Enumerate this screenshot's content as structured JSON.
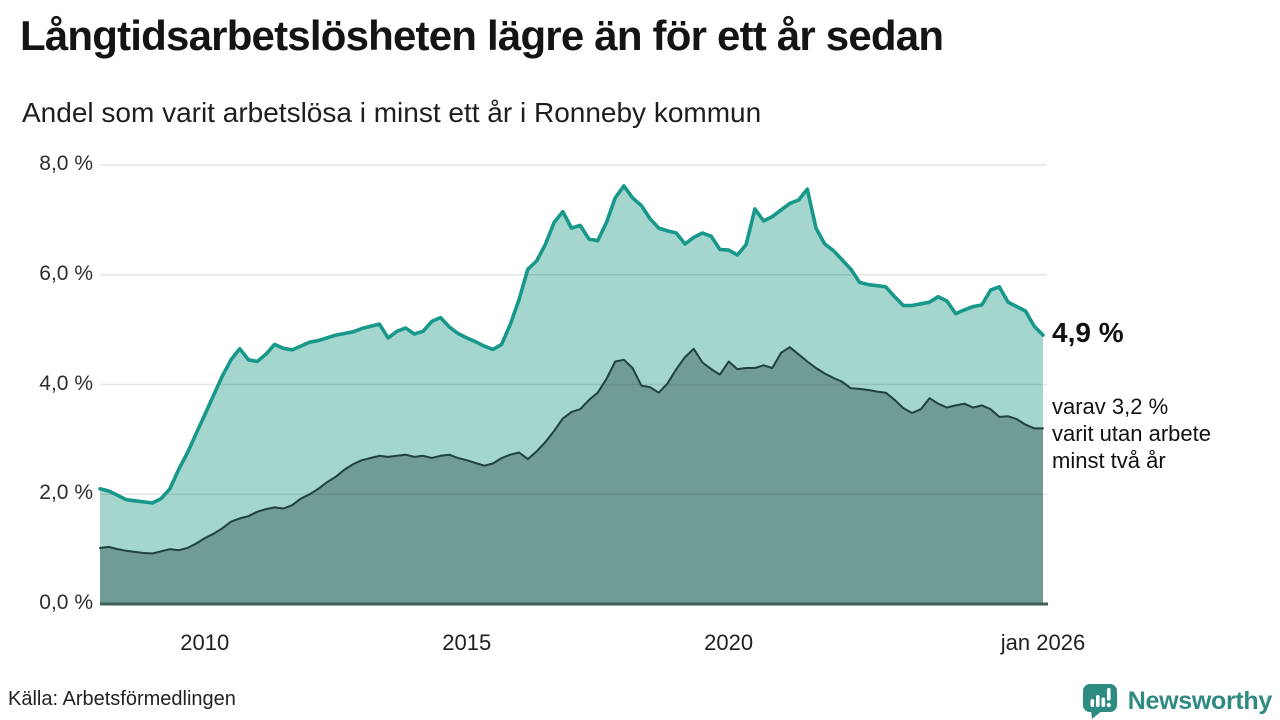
{
  "header": {
    "title": "Långtidsarbetslösheten lägre än för ett år sedan",
    "subtitle": "Andel som varit arbetslösa i minst ett år i Ronneby kommun"
  },
  "chart_data": {
    "type": "area",
    "title": "Långtidsarbetslösheten lägre än för ett år sedan",
    "subtitle": "Andel som varit arbetslösa i minst ett år i Ronneby kommun",
    "x_start": "jan 2008",
    "x_end": "jan 2026",
    "points_interval_months": 2,
    "total_months": 216,
    "x_tick_months": [
      24,
      84,
      144,
      216
    ],
    "x_tick_labels": [
      "2010",
      "2015",
      "2020",
      "jan 2026"
    ],
    "y_ticks": [
      0,
      2,
      4,
      6,
      8
    ],
    "y_tick_labels": [
      "0,0 %",
      "2,0 %",
      "4,0 %",
      "6,0 %",
      "8,0 %"
    ],
    "ylim": [
      0,
      8
    ],
    "grid": "horizontal",
    "colors": {
      "line_1yr": "#17988a",
      "fill_1yr": "#a5d6ce",
      "line_2yr": "#1e423c",
      "fill_2yr": "#6f9d96",
      "baseline": "#415f59",
      "gridline": "rgba(0,0,0,0.10)"
    },
    "series": [
      {
        "name": "Arbetslösa minst ett år",
        "latest_value_pct": 4.9,
        "values": [
          2.1,
          2.06,
          1.98,
          1.9,
          1.88,
          1.86,
          1.84,
          1.92,
          2.1,
          2.45,
          2.75,
          3.1,
          3.45,
          3.8,
          4.15,
          4.45,
          4.65,
          4.45,
          4.42,
          4.55,
          4.73,
          4.66,
          4.63,
          4.7,
          4.77,
          4.8,
          4.85,
          4.9,
          4.93,
          4.96,
          5.02,
          5.06,
          5.1,
          4.85,
          4.97,
          5.03,
          4.92,
          4.97,
          5.15,
          5.22,
          5.05,
          4.93,
          4.85,
          4.78,
          4.7,
          4.64,
          4.73,
          5.1,
          5.55,
          6.1,
          6.25,
          6.55,
          6.95,
          7.15,
          6.85,
          6.9,
          6.65,
          6.62,
          6.95,
          7.4,
          7.62,
          7.4,
          7.26,
          7.02,
          6.85,
          6.8,
          6.76,
          6.56,
          6.68,
          6.76,
          6.7,
          6.46,
          6.45,
          6.36,
          6.55,
          7.2,
          6.98,
          7.06,
          7.18,
          7.3,
          7.36,
          7.56,
          6.85,
          6.56,
          6.44,
          6.27,
          6.1,
          5.86,
          5.82,
          5.8,
          5.78,
          5.6,
          5.44,
          5.44,
          5.47,
          5.5,
          5.6,
          5.52,
          5.29,
          5.36,
          5.42,
          5.45,
          5.72,
          5.78,
          5.5,
          5.42,
          5.34,
          5.06,
          4.9
        ]
      },
      {
        "name": "Arbetslösa minst två år",
        "latest_value_pct": 3.2,
        "values": [
          1.02,
          1.04,
          1.0,
          0.97,
          0.95,
          0.93,
          0.92,
          0.96,
          1.0,
          0.98,
          1.02,
          1.1,
          1.2,
          1.28,
          1.38,
          1.5,
          1.56,
          1.6,
          1.68,
          1.73,
          1.76,
          1.74,
          1.8,
          1.92,
          2.0,
          2.1,
          2.22,
          2.32,
          2.45,
          2.55,
          2.62,
          2.66,
          2.7,
          2.68,
          2.7,
          2.72,
          2.68,
          2.7,
          2.66,
          2.7,
          2.72,
          2.66,
          2.62,
          2.57,
          2.52,
          2.56,
          2.66,
          2.72,
          2.76,
          2.64,
          2.78,
          2.95,
          3.15,
          3.38,
          3.5,
          3.55,
          3.72,
          3.85,
          4.1,
          4.42,
          4.45,
          4.3,
          3.98,
          3.95,
          3.85,
          4.02,
          4.28,
          4.5,
          4.65,
          4.4,
          4.28,
          4.18,
          4.42,
          4.28,
          4.3,
          4.3,
          4.35,
          4.3,
          4.58,
          4.68,
          4.55,
          4.42,
          4.3,
          4.2,
          4.12,
          4.05,
          3.93,
          3.92,
          3.9,
          3.87,
          3.85,
          3.72,
          3.57,
          3.48,
          3.55,
          3.75,
          3.65,
          3.58,
          3.62,
          3.65,
          3.58,
          3.62,
          3.55,
          3.41,
          3.42,
          3.37,
          3.27,
          3.2,
          3.2
        ]
      }
    ],
    "annotations": {
      "latest_value": "4,9 %",
      "secondary": [
        "varav 3,2 %",
        "varit utan arbete",
        "minst två år"
      ]
    }
  },
  "footer": {
    "source": "Källa: Arbetsförmedlingen",
    "brand": "Newsworthy",
    "brand_color": "#2e8b81"
  }
}
